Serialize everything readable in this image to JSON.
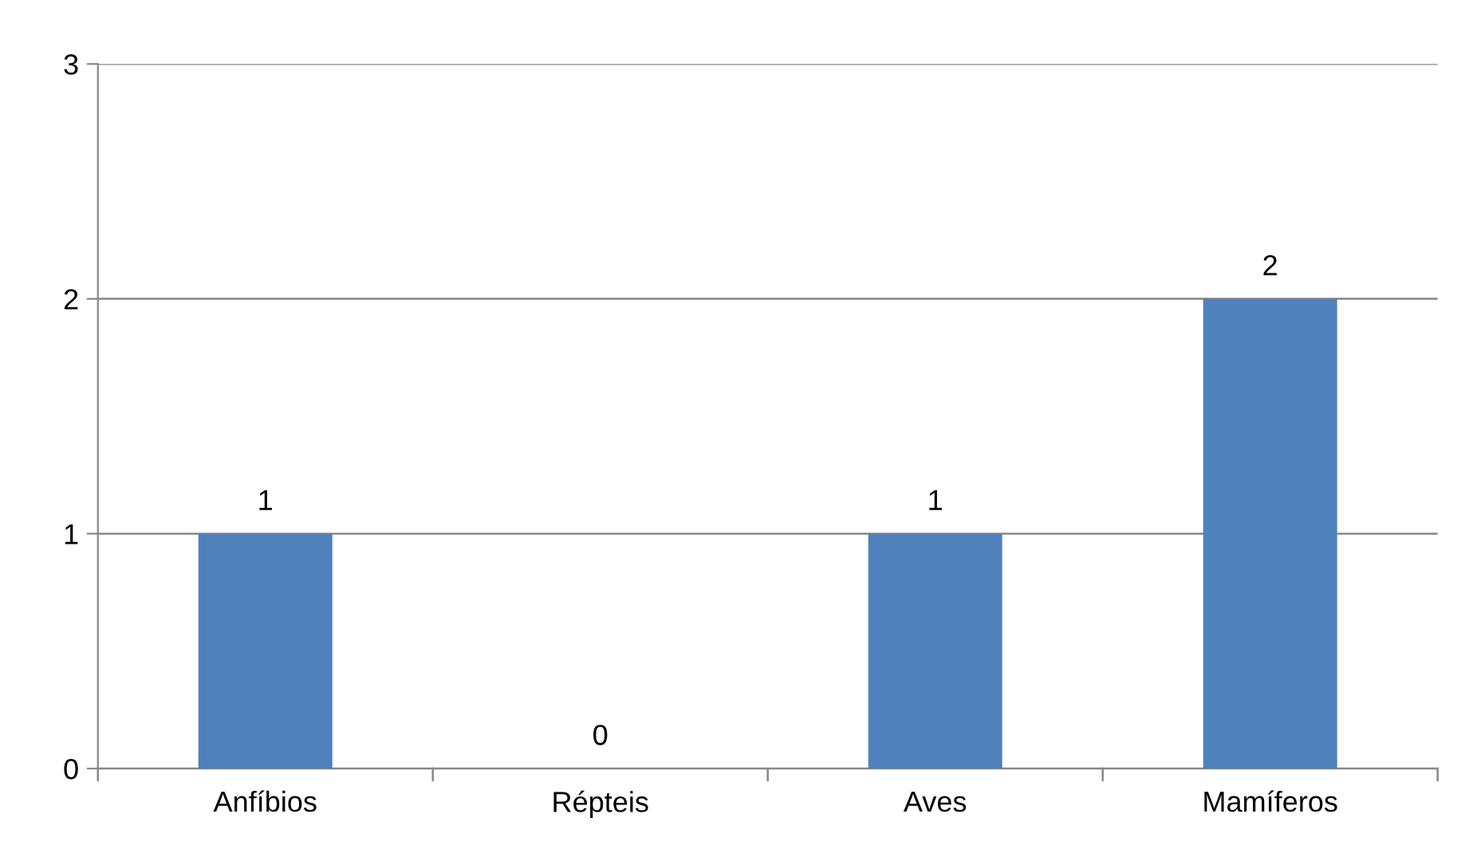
{
  "chart_data": {
    "type": "bar",
    "categories": [
      "Anfíbios",
      "Répteis",
      "Aves",
      "Mamíferos"
    ],
    "values": [
      1,
      0,
      1,
      2
    ],
    "color": "#4f81bd",
    "ylim": [
      0,
      3
    ],
    "yticks": [
      0,
      1,
      2,
      3
    ],
    "grid": "y",
    "data_labels": true
  }
}
